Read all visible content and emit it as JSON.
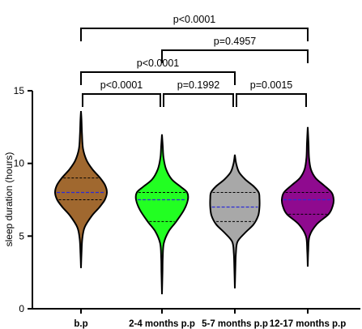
{
  "chart_data": {
    "type": "violin",
    "ylabel": "sleep duration  (hours)",
    "ylim": [
      0,
      15
    ],
    "yticks": [
      0,
      5,
      10,
      15
    ],
    "grid": false,
    "categories": [
      "b.p",
      "2-4 months p.p",
      "5-7 months p.p",
      "12-17 months p.p"
    ],
    "colors": [
      "#a0682f",
      "#22ff22",
      "#a8a8a8",
      "#8f0a8f"
    ],
    "series": [
      {
        "min": 2.8,
        "q1": 7.5,
        "median": 8.0,
        "q3": 9.0,
        "max": 13.6,
        "profile": [
          [
            2.8,
            0.0
          ],
          [
            3.8,
            0.02
          ],
          [
            4.8,
            0.05
          ],
          [
            5.6,
            0.14
          ],
          [
            6.4,
            0.42
          ],
          [
            7.0,
            0.72
          ],
          [
            7.5,
            0.92
          ],
          [
            8.0,
            1.0
          ],
          [
            8.5,
            0.93
          ],
          [
            9.0,
            0.74
          ],
          [
            9.6,
            0.44
          ],
          [
            10.2,
            0.22
          ],
          [
            11.0,
            0.08
          ],
          [
            12.0,
            0.04
          ],
          [
            13.0,
            0.02
          ],
          [
            13.6,
            0.0
          ]
        ]
      },
      {
        "min": 1.0,
        "q1": 6.0,
        "median": 7.5,
        "q3": 8.0,
        "max": 12.0,
        "profile": [
          [
            1.0,
            0.0
          ],
          [
            2.5,
            0.02
          ],
          [
            3.5,
            0.03
          ],
          [
            4.5,
            0.07
          ],
          [
            5.3,
            0.25
          ],
          [
            6.0,
            0.55
          ],
          [
            6.8,
            0.85
          ],
          [
            7.5,
            1.0
          ],
          [
            8.0,
            0.97
          ],
          [
            8.4,
            0.72
          ],
          [
            8.9,
            0.38
          ],
          [
            9.6,
            0.16
          ],
          [
            10.4,
            0.06
          ],
          [
            11.2,
            0.03
          ],
          [
            12.0,
            0.0
          ]
        ]
      },
      {
        "min": 1.4,
        "q1": 6.0,
        "median": 7.0,
        "q3": 8.0,
        "max": 10.6,
        "profile": [
          [
            1.4,
            0.0
          ],
          [
            2.8,
            0.02
          ],
          [
            3.8,
            0.04
          ],
          [
            4.6,
            0.1
          ],
          [
            5.2,
            0.38
          ],
          [
            5.8,
            0.72
          ],
          [
            6.4,
            0.9
          ],
          [
            7.0,
            0.95
          ],
          [
            7.6,
            0.95
          ],
          [
            8.0,
            0.92
          ],
          [
            8.4,
            0.74
          ],
          [
            8.9,
            0.4
          ],
          [
            9.4,
            0.16
          ],
          [
            10.0,
            0.05
          ],
          [
            10.6,
            0.0
          ]
        ]
      },
      {
        "min": 2.9,
        "q1": 6.5,
        "median": 7.5,
        "q3": 8.0,
        "max": 12.5,
        "profile": [
          [
            2.9,
            0.0
          ],
          [
            4.0,
            0.02
          ],
          [
            5.0,
            0.07
          ],
          [
            5.8,
            0.34
          ],
          [
            6.5,
            0.8
          ],
          [
            7.0,
            0.95
          ],
          [
            7.5,
            1.0
          ],
          [
            8.0,
            0.92
          ],
          [
            8.5,
            0.62
          ],
          [
            9.0,
            0.3
          ],
          [
            9.6,
            0.12
          ],
          [
            10.4,
            0.05
          ],
          [
            11.4,
            0.03
          ],
          [
            12.5,
            0.0
          ]
        ]
      }
    ],
    "comparisons": [
      {
        "from": 0,
        "to": 1,
        "label": "p<0.0001"
      },
      {
        "from": 1,
        "to": 2,
        "label": "p=0.1992"
      },
      {
        "from": 2,
        "to": 3,
        "label": "p=0.0015"
      },
      {
        "from": 0,
        "to": 2,
        "label": "p<0.0001"
      },
      {
        "from": 1,
        "to": 3,
        "label": "p=0.4957"
      },
      {
        "from": 0,
        "to": 3,
        "label": "p<0.0001"
      }
    ]
  }
}
